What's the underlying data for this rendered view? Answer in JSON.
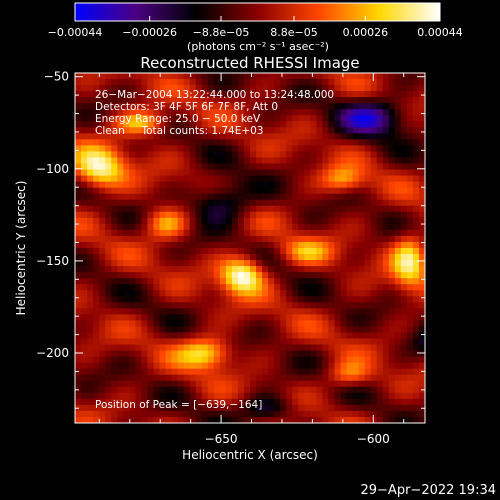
{
  "chart_data": {
    "type": "heatmap",
    "title": "Reconstructed RHESSI Image",
    "xlabel": "Heliocentric X (arcsec)",
    "ylabel": "Heliocentric Y (arcsec)",
    "xlim": [
      -698,
      -583
    ],
    "ylim": [
      -238,
      -48
    ],
    "x_ticks": [
      -650,
      -600,
      -550
    ],
    "x_tick_labels": [
      "−650",
      "−600",
      "−550"
    ],
    "y_ticks": [
      -50,
      -100,
      -150,
      -200
    ],
    "y_tick_labels": [
      "−50",
      "−100",
      "−150",
      "−200"
    ],
    "colorbar": {
      "vmin": -0.00044,
      "vmax": 0.00044,
      "ticks": [
        -0.00044,
        -0.00026,
        -8.8e-05,
        8.8e-05,
        0.00026,
        0.00044
      ],
      "tick_labels": [
        "−0.00044",
        "−0.00026",
        "−8.8e−05",
        "8.8e−05",
        "0.00026",
        "0.00044"
      ],
      "label": "(photons cm⁻² s⁻¹ asec⁻²)",
      "colormap": [
        "#0000ff",
        "#4b0082",
        "#000000",
        "#8b0000",
        "#ff4500",
        "#ffd700",
        "#ffffff"
      ]
    },
    "annotations": [
      "26−Mar−2004 13:22:44.000 to 13:24:48.000",
      "Detectors: 3F 4F 5F 6F 7F 8F, Att 0",
      "Energy Range: 25.0 − 50.0 keV",
      "Clean     Total counts: 1.74E+03"
    ],
    "peak_label": "Position of Peak = [−639,−164]",
    "peak_position": [
      -639,
      -164
    ],
    "sources": [
      {
        "x": -643,
        "y": -158,
        "amp": 0.00044,
        "sx": 5,
        "sy": 7
      },
      {
        "x": -655,
        "y": -200,
        "amp": 0.00034,
        "sx": 6,
        "sy": 6
      },
      {
        "x": -690,
        "y": -100,
        "amp": 0.00038,
        "sx": 6,
        "sy": 8
      },
      {
        "x": -676,
        "y": -75,
        "amp": 0.0003,
        "sx": 6,
        "sy": 5
      },
      {
        "x": -668,
        "y": -130,
        "amp": 0.00026,
        "sx": 5,
        "sy": 6
      },
      {
        "x": -588,
        "y": -150,
        "amp": 0.00032,
        "sx": 4,
        "sy": 11
      },
      {
        "x": -610,
        "y": -106,
        "amp": 0.00024,
        "sx": 5,
        "sy": 5
      },
      {
        "x": -622,
        "y": -145,
        "amp": 0.0002,
        "sx": 6,
        "sy": 5
      },
      {
        "x": -608,
        "y": -212,
        "amp": 0.00022,
        "sx": 5,
        "sy": 5
      },
      {
        "x": -650,
        "y": -118,
        "amp": -0.00026,
        "sx": 7,
        "sy": 8
      },
      {
        "x": -600,
        "y": -72,
        "amp": -0.00032,
        "sx": 8,
        "sy": 7
      },
      {
        "x": -575,
        "y": -195,
        "amp": -0.0003,
        "sx": 7,
        "sy": 6
      },
      {
        "x": -635,
        "y": -230,
        "amp": -0.00022,
        "sx": 6,
        "sy": 5
      }
    ]
  },
  "footer": {
    "date": "29−Apr−2022 19:34"
  }
}
